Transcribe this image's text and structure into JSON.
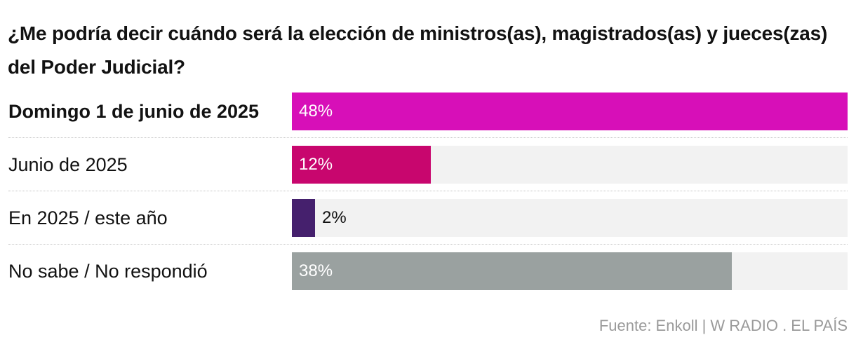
{
  "chart_data": {
    "type": "bar",
    "orientation": "horizontal",
    "title": "¿Me podría decir cuándo será la elección de ministros(as), magistrados(as) y jueces(zas) del Poder Judicial?",
    "categories": [
      "Domingo 1 de junio de 2025",
      "Junio de 2025",
      "En 2025 / este año",
      "No sabe / No respondió"
    ],
    "values": [
      48,
      12,
      2,
      38
    ],
    "value_labels": [
      "48%",
      "12%",
      "2%",
      "38%"
    ],
    "highlight": [
      true,
      false,
      false,
      false
    ],
    "colors": [
      "#d70fb8",
      "#c8066e",
      "#45206d",
      "#9aa1a0"
    ],
    "track_color": "#f2f2f2",
    "xlim": [
      0,
      48
    ],
    "xlabel": "",
    "ylabel": "",
    "source": "Fuente: Enkoll | W RADIO . EL PAÍS"
  }
}
